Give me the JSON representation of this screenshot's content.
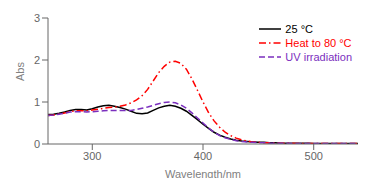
{
  "chart_data": {
    "type": "line",
    "xlabel": "Wavelength/nm",
    "ylabel": "Abs",
    "xlim": [
      260,
      540
    ],
    "ylim": [
      0,
      3
    ],
    "xticks": [
      300,
      400,
      500
    ],
    "yticks": [
      0,
      1,
      2,
      3
    ],
    "grid": false,
    "legend": "upper right",
    "x": [
      260,
      265,
      270,
      275,
      280,
      285,
      290,
      295,
      300,
      305,
      310,
      315,
      320,
      325,
      330,
      335,
      340,
      345,
      350,
      355,
      360,
      365,
      370,
      375,
      380,
      385,
      390,
      395,
      400,
      405,
      410,
      415,
      420,
      425,
      430,
      435,
      440,
      445,
      450,
      455,
      460,
      465,
      470,
      475,
      480,
      485,
      490,
      495,
      500,
      505,
      510,
      515,
      520,
      525,
      530,
      535,
      540
    ],
    "series": [
      {
        "name": "25 °C",
        "color": "#000000",
        "line_style": "solid",
        "values": [
          0.7,
          0.71,
          0.73,
          0.76,
          0.8,
          0.82,
          0.82,
          0.81,
          0.84,
          0.88,
          0.91,
          0.92,
          0.9,
          0.87,
          0.83,
          0.78,
          0.73,
          0.72,
          0.74,
          0.8,
          0.86,
          0.9,
          0.92,
          0.9,
          0.85,
          0.78,
          0.68,
          0.58,
          0.47,
          0.37,
          0.28,
          0.21,
          0.16,
          0.12,
          0.09,
          0.07,
          0.06,
          0.05,
          0.04,
          0.04,
          0.03,
          0.03,
          0.02,
          0.02,
          0.02,
          0.02,
          0.02,
          0.02,
          0.01,
          0.01,
          0.01,
          0.01,
          0.01,
          0.01,
          0.01,
          0.01,
          0.01
        ]
      },
      {
        "name": "Heat to 80 °C",
        "color": "#ff0000",
        "line_style": "dashdot",
        "values": [
          0.68,
          0.69,
          0.71,
          0.74,
          0.77,
          0.79,
          0.79,
          0.79,
          0.81,
          0.83,
          0.85,
          0.87,
          0.88,
          0.9,
          0.93,
          0.98,
          1.05,
          1.15,
          1.3,
          1.5,
          1.7,
          1.85,
          1.95,
          1.97,
          1.92,
          1.78,
          1.55,
          1.28,
          1.0,
          0.75,
          0.55,
          0.4,
          0.28,
          0.2,
          0.14,
          0.1,
          0.07,
          0.05,
          0.04,
          0.03,
          0.03,
          0.02,
          0.02,
          0.02,
          0.02,
          0.01,
          0.01,
          0.01,
          0.01,
          0.01,
          0.01,
          0.01,
          0.01,
          0.01,
          0.01,
          0.01,
          0.01
        ]
      },
      {
        "name": "UV irradiation",
        "color": "#7b2fbe",
        "line_style": "dashed",
        "values": [
          0.68,
          0.69,
          0.71,
          0.73,
          0.76,
          0.77,
          0.77,
          0.76,
          0.77,
          0.78,
          0.79,
          0.8,
          0.8,
          0.8,
          0.8,
          0.8,
          0.82,
          0.85,
          0.88,
          0.92,
          0.96,
          0.99,
          1.0,
          0.98,
          0.93,
          0.85,
          0.74,
          0.62,
          0.5,
          0.38,
          0.28,
          0.2,
          0.15,
          0.11,
          0.08,
          0.06,
          0.05,
          0.04,
          0.03,
          0.03,
          0.02,
          0.02,
          0.02,
          0.02,
          0.01,
          0.01,
          0.01,
          0.01,
          0.01,
          0.01,
          0.01,
          0.01,
          0.01,
          0.01,
          0.01,
          0.01,
          0.01
        ]
      }
    ]
  }
}
